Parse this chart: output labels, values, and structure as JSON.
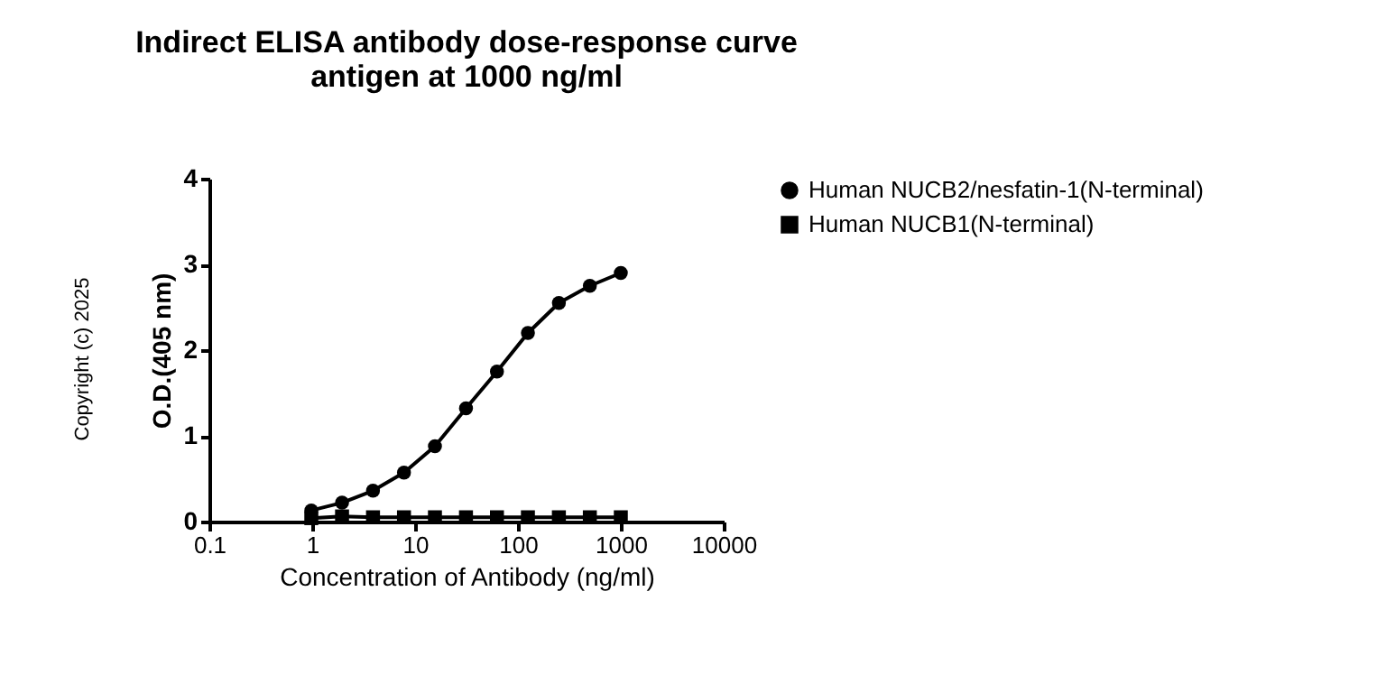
{
  "chart_data": {
    "type": "line",
    "title": [
      "Indirect ELISA antibody dose-response curve",
      "antigen at 1000 ng/ml"
    ],
    "xlabel": "Concentration of Antibody (ng/ml)",
    "ylabel": "O.D.(405 nm)",
    "x": [
      0.98,
      1.95,
      3.9,
      7.8,
      15.6,
      31.25,
      62.5,
      125,
      250,
      500,
      1000
    ],
    "series": [
      {
        "name": "Human NUCB2/nesfatin-1(N-terminal)",
        "color": "#000000",
        "marker": "circle",
        "values": [
          0.13,
          0.22,
          0.36,
          0.57,
          0.88,
          1.32,
          1.75,
          2.2,
          2.55,
          2.75,
          2.9
        ]
      },
      {
        "name": "Human NUCB1(N-terminal)",
        "color": "#000000",
        "marker": "square",
        "values": [
          0.04,
          0.06,
          0.05,
          0.05,
          0.05,
          0.05,
          0.05,
          0.05,
          0.05,
          0.05,
          0.05
        ]
      }
    ],
    "log": "x",
    "xlim": [
      0.1,
      10000
    ],
    "xticks": [
      0.1,
      1,
      10,
      100,
      1000,
      10000
    ],
    "ylim": [
      0,
      4
    ],
    "yticks": [
      0,
      1,
      2,
      3,
      4
    ],
    "grid": false,
    "legend": "top right",
    "line_style": "solid",
    "annotations": [
      "Copyright (c) 2025"
    ]
  }
}
